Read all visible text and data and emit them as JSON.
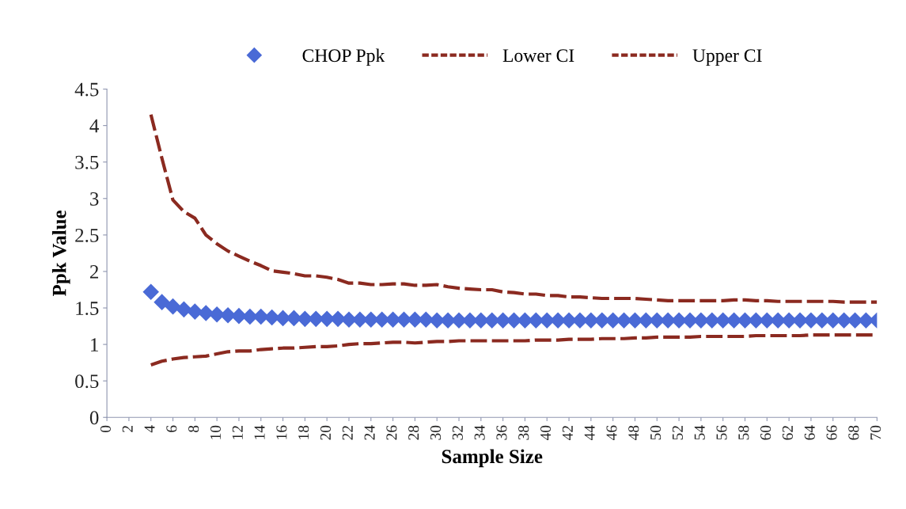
{
  "chart_data": {
    "type": "scatter",
    "xlabel": "Sample Size",
    "ylabel": "Ppk Value",
    "x": [
      4,
      5,
      6,
      7,
      8,
      9,
      10,
      11,
      12,
      13,
      14,
      15,
      16,
      17,
      18,
      19,
      20,
      21,
      22,
      23,
      24,
      25,
      26,
      27,
      28,
      29,
      30,
      31,
      32,
      33,
      34,
      35,
      36,
      37,
      38,
      39,
      40,
      41,
      42,
      43,
      44,
      45,
      46,
      47,
      48,
      49,
      50,
      51,
      52,
      53,
      54,
      55,
      56,
      57,
      58,
      59,
      60,
      61,
      62,
      63,
      64,
      65,
      66,
      67,
      68,
      69,
      70
    ],
    "series": [
      {
        "name": "CHOP Ppk",
        "marker": "diamond",
        "color": "#4a6ad6",
        "values": [
          1.72,
          1.58,
          1.52,
          1.48,
          1.45,
          1.43,
          1.41,
          1.4,
          1.39,
          1.38,
          1.38,
          1.37,
          1.36,
          1.36,
          1.35,
          1.35,
          1.35,
          1.35,
          1.34,
          1.34,
          1.34,
          1.34,
          1.34,
          1.34,
          1.34,
          1.34,
          1.33,
          1.33,
          1.33,
          1.33,
          1.33,
          1.33,
          1.33,
          1.33,
          1.33,
          1.33,
          1.33,
          1.33,
          1.33,
          1.33,
          1.33,
          1.33,
          1.33,
          1.33,
          1.33,
          1.33,
          1.33,
          1.33,
          1.33,
          1.33,
          1.33,
          1.33,
          1.33,
          1.33,
          1.33,
          1.33,
          1.33,
          1.33,
          1.33,
          1.33,
          1.33,
          1.33,
          1.33,
          1.33,
          1.33,
          1.33,
          1.33
        ]
      },
      {
        "name": "Lower CI",
        "type": "line",
        "line_style": "dashed",
        "color": "#8b2a20",
        "values": [
          0.72,
          0.77,
          0.8,
          0.82,
          0.83,
          0.84,
          0.87,
          0.9,
          0.91,
          0.91,
          0.93,
          0.94,
          0.95,
          0.95,
          0.96,
          0.97,
          0.97,
          0.98,
          1.0,
          1.01,
          1.01,
          1.02,
          1.03,
          1.03,
          1.02,
          1.03,
          1.04,
          1.04,
          1.05,
          1.05,
          1.05,
          1.05,
          1.05,
          1.05,
          1.05,
          1.06,
          1.06,
          1.06,
          1.07,
          1.07,
          1.07,
          1.08,
          1.08,
          1.08,
          1.09,
          1.09,
          1.1,
          1.1,
          1.1,
          1.1,
          1.11,
          1.11,
          1.11,
          1.11,
          1.11,
          1.12,
          1.12,
          1.12,
          1.12,
          1.12,
          1.13,
          1.13,
          1.13,
          1.13,
          1.13,
          1.13,
          1.13
        ]
      },
      {
        "name": "Upper CI",
        "type": "line",
        "line_style": "dashed",
        "color": "#8b2a20",
        "values": [
          4.15,
          3.55,
          2.98,
          2.82,
          2.73,
          2.5,
          2.38,
          2.28,
          2.21,
          2.14,
          2.08,
          2.01,
          1.99,
          1.97,
          1.94,
          1.94,
          1.92,
          1.89,
          1.84,
          1.84,
          1.82,
          1.82,
          1.83,
          1.83,
          1.81,
          1.81,
          1.82,
          1.79,
          1.77,
          1.76,
          1.75,
          1.75,
          1.72,
          1.71,
          1.69,
          1.69,
          1.67,
          1.67,
          1.65,
          1.65,
          1.64,
          1.63,
          1.63,
          1.63,
          1.63,
          1.62,
          1.61,
          1.6,
          1.6,
          1.6,
          1.6,
          1.6,
          1.6,
          1.61,
          1.61,
          1.6,
          1.6,
          1.59,
          1.59,
          1.59,
          1.59,
          1.59,
          1.59,
          1.58,
          1.58,
          1.58,
          1.58
        ]
      }
    ],
    "xlim": [
      0,
      70
    ],
    "xticks": [
      0,
      2,
      4,
      6,
      8,
      10,
      12,
      14,
      16,
      18,
      20,
      22,
      24,
      26,
      28,
      30,
      32,
      34,
      36,
      38,
      40,
      42,
      44,
      46,
      48,
      50,
      52,
      54,
      56,
      58,
      60,
      62,
      64,
      66,
      68,
      70
    ],
    "ylim": [
      0,
      4.5
    ],
    "yticks": [
      0,
      0.5,
      1,
      1.5,
      2,
      2.5,
      3,
      3.5,
      4,
      4.5
    ],
    "legend": "top",
    "grid": false
  }
}
